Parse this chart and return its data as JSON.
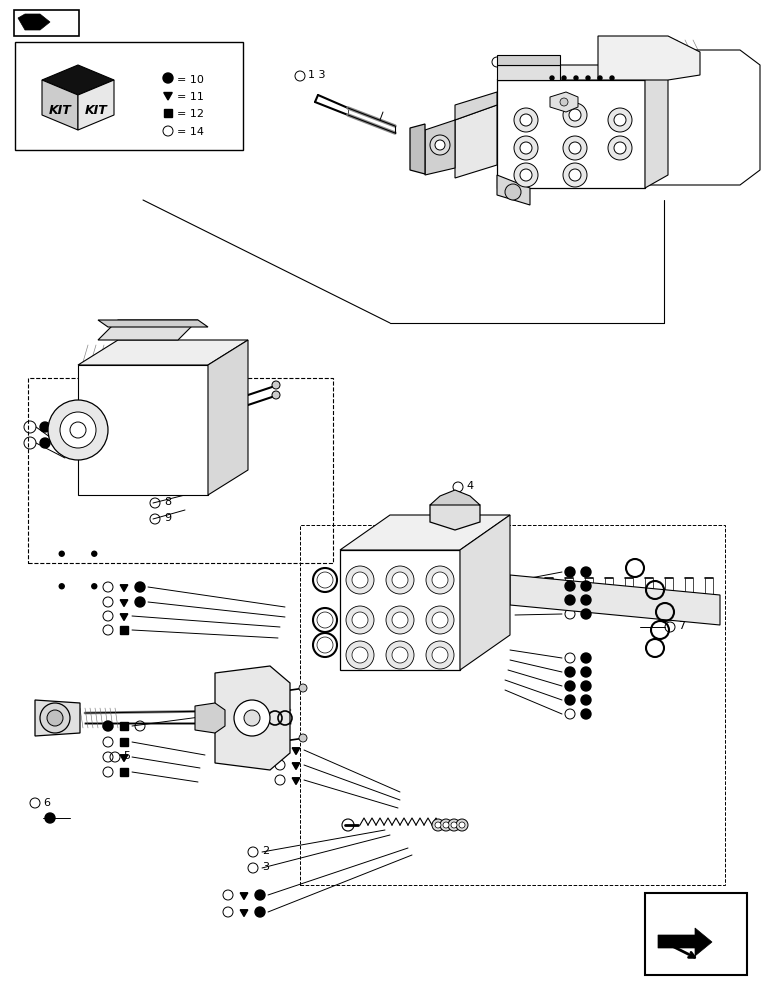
{
  "bg_color": "#ffffff",
  "lc": "#000000",
  "gray1": "#e8e8e8",
  "gray2": "#d0d0d0",
  "gray3": "#b0b0b0",
  "hatch_color": "#888888"
}
